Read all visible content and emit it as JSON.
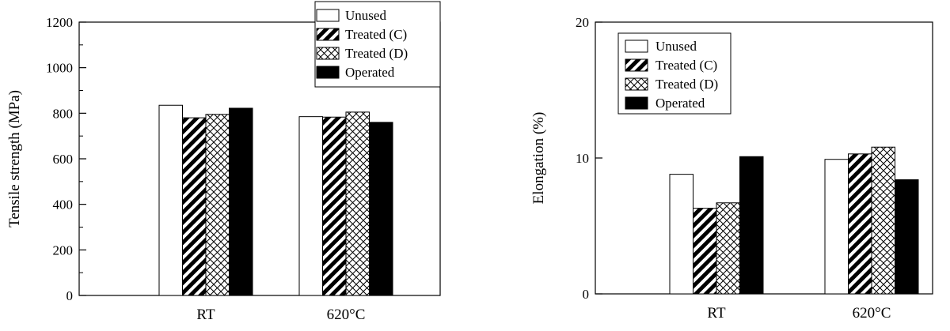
{
  "chart_data": [
    {
      "type": "bar",
      "ylabel": "Tensile strength (MPa)",
      "xlabel": "",
      "ylim": [
        0,
        1200
      ],
      "yticks": [
        0,
        200,
        400,
        600,
        800,
        1000,
        1200
      ],
      "categories": [
        "RT",
        "620°C"
      ],
      "legend_position": "top-right",
      "grid": false,
      "series": [
        {
          "name": "Unused",
          "pattern": "white",
          "values": [
            835,
            785
          ]
        },
        {
          "name": "Treated (C)",
          "pattern": "diagonal",
          "values": [
            780,
            783
          ]
        },
        {
          "name": "Treated (D)",
          "pattern": "crosshatch",
          "values": [
            795,
            805
          ]
        },
        {
          "name": "Operated",
          "pattern": "black",
          "values": [
            822,
            760
          ]
        }
      ]
    },
    {
      "type": "bar",
      "ylabel": "Elongation (%)",
      "xlabel": "",
      "ylim": [
        0,
        20
      ],
      "yticks": [
        0,
        10,
        20
      ],
      "categories": [
        "RT",
        "620°C"
      ],
      "legend_position": "top-left",
      "grid": false,
      "series": [
        {
          "name": "Unused",
          "pattern": "white",
          "values": [
            8.8,
            9.9
          ]
        },
        {
          "name": "Treated (C)",
          "pattern": "diagonal",
          "values": [
            6.3,
            10.3
          ]
        },
        {
          "name": "Treated (D)",
          "pattern": "crosshatch",
          "values": [
            6.7,
            10.8
          ]
        },
        {
          "name": "Operated",
          "pattern": "black",
          "values": [
            10.1,
            8.4
          ]
        }
      ]
    }
  ]
}
